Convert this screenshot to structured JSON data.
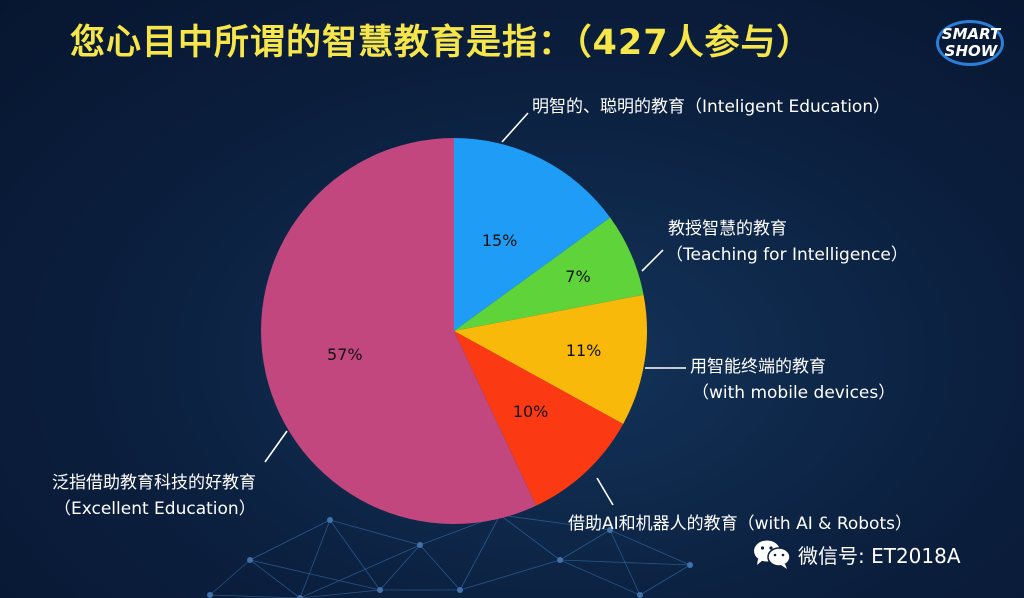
{
  "header": {
    "title": "您心目中所谓的智慧教育是指：（427人参与）",
    "logo_line1": "SMART",
    "logo_line2": "SHOW"
  },
  "chart_data": {
    "type": "pie",
    "title": "您心目中所谓的智慧教育是指：（427人参与）",
    "start": "12 o'clock, clockwise",
    "slices": [
      {
        "label_cn": "明智的、聪明的教育（Inteligent Education）",
        "label_en": "",
        "value": 15,
        "value_label": "15%",
        "color": "#1e9cf6"
      },
      {
        "label_cn": "教授智慧的教育",
        "label_en": "（Teaching for Intelligence）",
        "value": 7,
        "value_label": "7%",
        "color": "#5ed43a"
      },
      {
        "label_cn": "用智能终端的教育",
        "label_en": "（with mobile devices）",
        "value": 11,
        "value_label": "11%",
        "color": "#f8b90a"
      },
      {
        "label_cn": "借助AI和机器人的教育（with AI & Robots）",
        "label_en": "",
        "value": 10,
        "value_label": "10%",
        "color": "#fb3a13"
      },
      {
        "label_cn": "泛指借助教育科技的好教育",
        "label_en": "（Excellent Education）",
        "value": 57,
        "value_label": "57%",
        "color": "#c2477f"
      }
    ]
  },
  "watermark": {
    "text": "微信号: ET2018A",
    "icon": "wechat-icon"
  }
}
